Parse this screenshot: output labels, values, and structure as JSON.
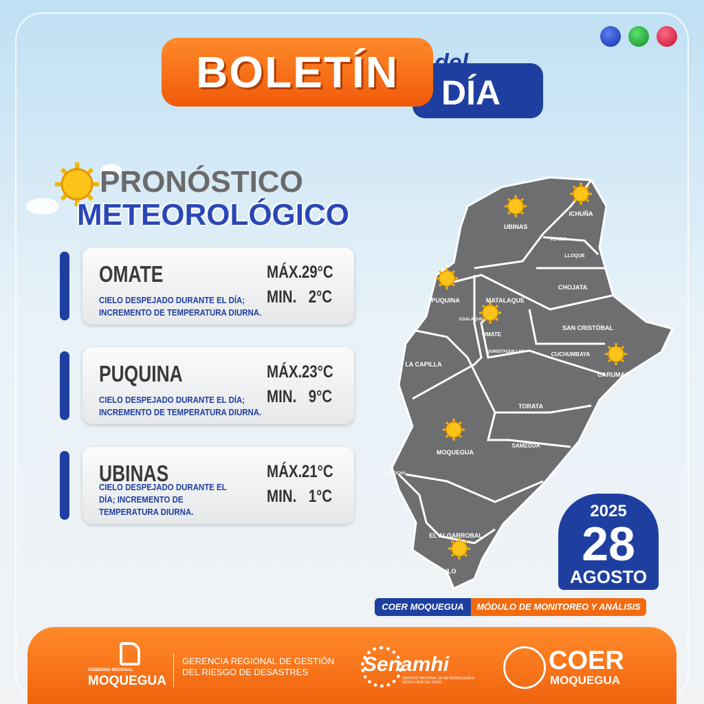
{
  "header": {
    "title": "BOLETÍN",
    "del": "del",
    "day": "DÍA"
  },
  "section": {
    "line1": "PRONÓSTICO",
    "line2": "METEOROLÓGICO"
  },
  "cards": [
    {
      "name": "OMATE",
      "description": [
        "CIELO DESPEJADO DURANTE EL DÍA;",
        "INCREMENTO DE TEMPERATURA DIURNA."
      ],
      "max_label": "MÁX.",
      "max": "29°C",
      "min_label": "MIN.",
      "min": "2°C"
    },
    {
      "name": "PUQUINA",
      "description": [
        "CIELO DESPEJADO DURANTE EL DÍA;",
        "INCREMENTO DE TEMPERATURA DIURNA."
      ],
      "max_label": "MÁX.",
      "max": "23°C",
      "min_label": "MIN.",
      "min": "9°C"
    },
    {
      "name": "UBINAS",
      "description": [
        "CIELO DESPEJADO DURANTE EL",
        "DÍA; INCREMENTO DE",
        "TEMPERATURA DIURNA."
      ],
      "max_label": "MÁX.",
      "max": "21°C",
      "min_label": "MIN.",
      "min": "1°C"
    }
  ],
  "map": {
    "districts": [
      "UBINAS",
      "ICHUÑA",
      "YUNGA",
      "LLOQUE",
      "CHOJATA",
      "PUQUINA",
      "MATALAQUE",
      "COALAQUE",
      "OMATE",
      "QUINISTAQUILLAS",
      "SAN CRISTÓBAL",
      "CUCHUMBAYA",
      "CARUMAS",
      "LA CAPILLA",
      "TORATA",
      "SAMEGUA",
      "MOQUEGUA",
      "PACOCHA",
      "EL ALGARROBAL",
      "ILO"
    ]
  },
  "date": {
    "year": "2025",
    "day": "28",
    "month": "AGOSTO"
  },
  "tags": {
    "left": "COER MOQUEGUA",
    "right": "MÓDULO DE MONITOREO Y ANÁLISIS"
  },
  "footer": {
    "gov_small": "GOBIERNO REGIONAL",
    "gov": "MOQUEGUA",
    "gerencia": [
      "GERENCIA REGIONAL DE GESTIÓN",
      "DEL RIESGO DE DESASTRES"
    ],
    "senamhi": "Senamhi",
    "senamhi_sub": "SERVICIO NACIONAL DE METEOROLOGÍA E HIDROLOGÍA DEL PERÚ",
    "coer": "COER",
    "coer_sub": "MOQUEGUA"
  }
}
